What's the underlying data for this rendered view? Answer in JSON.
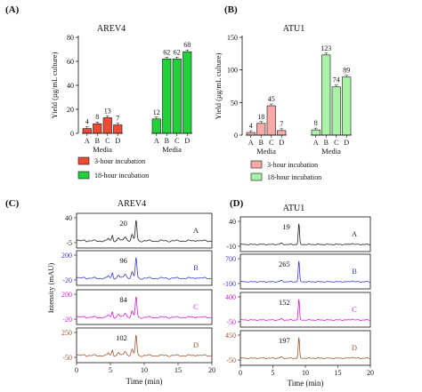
{
  "bar_panels": [
    {
      "letter": "(A)",
      "title": "AREV4",
      "ylabel": "Yield (µg/mL culture)",
      "xlabel": "Media",
      "yticks": [
        0,
        20,
        40,
        60,
        80
      ],
      "ylim": [
        0,
        80
      ],
      "colors": {
        "short": "#f04a33",
        "long": "#22d13a"
      }
    },
    {
      "letter": "(B)",
      "title": "ATU1",
      "ylabel": "Yield (µg/mL culture)",
      "xlabel": "Media",
      "yticks": [
        0,
        50,
        100,
        150
      ],
      "ylim": [
        0,
        150
      ],
      "colors": {
        "short": "#f7aaa8",
        "long": "#aaf2a8"
      }
    }
  ],
  "trace_panels": [
    {
      "letter": "(C)",
      "title": "AREV4",
      "ylabel": "Intensity (mAU)",
      "xlabel": "Time (min)",
      "xticks": [
        0,
        5,
        10,
        15,
        20
      ],
      "strips": [
        {
          "letter": "A",
          "color": "#222222",
          "ytop": 40,
          "ybottom": -5,
          "peak": 20,
          "profile": "arev"
        },
        {
          "letter": "B",
          "color": "#3a3ad0",
          "ytop": 200,
          "ybottom": -20,
          "peak": 96,
          "profile": "arev"
        },
        {
          "letter": "C",
          "color": "#d21cd2",
          "ytop": 200,
          "ybottom": -20,
          "peak": 84,
          "profile": "arev"
        },
        {
          "letter": "D",
          "color": "#a0522d",
          "ytop": 250,
          "ybottom": -50,
          "peak": 102,
          "profile": "arev"
        }
      ]
    },
    {
      "letter": "(D)",
      "title": "ATU1",
      "ylabel": "",
      "xlabel": "Time (min)",
      "xticks": [
        0,
        5,
        10,
        15,
        20
      ],
      "strips": [
        {
          "letter": "A",
          "color": "#222222",
          "ytop": 40,
          "ybottom": -10,
          "peak": 19,
          "profile": "atu"
        },
        {
          "letter": "B",
          "color": "#3a3ad0",
          "ytop": 700,
          "ybottom": -100,
          "peak": 265,
          "profile": "atu"
        },
        {
          "letter": "C",
          "color": "#d21cd2",
          "ytop": 400,
          "ybottom": -50,
          "peak": 152,
          "profile": "atu"
        },
        {
          "letter": "D",
          "color": "#a0522d",
          "ytop": 450,
          "ybottom": -50,
          "peak": 197,
          "profile": "atu"
        }
      ]
    }
  ],
  "chart_data": [
    {
      "type": "bar",
      "title": "AREV4",
      "xlabel": "Media",
      "ylabel": "Yield (µg/mL culture)",
      "ylim": [
        0,
        80
      ],
      "categories": [
        "A",
        "B",
        "C",
        "D"
      ],
      "series": [
        {
          "name": "3-hour incubation",
          "values": [
            4,
            8,
            13,
            7
          ]
        },
        {
          "name": "18-hour incubation",
          "values": [
            12,
            62,
            62,
            68
          ]
        }
      ],
      "legend": "below"
    },
    {
      "type": "bar",
      "title": "ATU1",
      "xlabel": "Media",
      "ylabel": "Yield (µg/mL culture)",
      "ylim": [
        0,
        150
      ],
      "categories": [
        "A",
        "B",
        "C",
        "D"
      ],
      "series": [
        {
          "name": "3-hour incubation",
          "values": [
            4,
            18,
            45,
            7
          ]
        },
        {
          "name": "18-hour incubation",
          "values": [
            8,
            123,
            74,
            89
          ]
        }
      ],
      "legend": "below"
    },
    {
      "type": "line",
      "title": "AREV4",
      "xlabel": "Time (min)",
      "ylabel": "Intensity (mAU)",
      "xlim": [
        0,
        20
      ],
      "series": [
        {
          "name": "A",
          "peak_time": 8.8,
          "peak_label": 20
        },
        {
          "name": "B",
          "peak_time": 8.8,
          "peak_label": 96
        },
        {
          "name": "C",
          "peak_time": 8.8,
          "peak_label": 84
        },
        {
          "name": "D",
          "peak_time": 8.8,
          "peak_label": 102
        }
      ]
    },
    {
      "type": "line",
      "title": "ATU1",
      "xlabel": "Time (min)",
      "xlim": [
        0,
        20
      ],
      "series": [
        {
          "name": "A",
          "peak_time": 9.0,
          "peak_label": 19
        },
        {
          "name": "B",
          "peak_time": 9.0,
          "peak_label": 265
        },
        {
          "name": "C",
          "peak_time": 9.0,
          "peak_label": 152
        },
        {
          "name": "D",
          "peak_time": 9.0,
          "peak_label": 197
        }
      ]
    }
  ]
}
